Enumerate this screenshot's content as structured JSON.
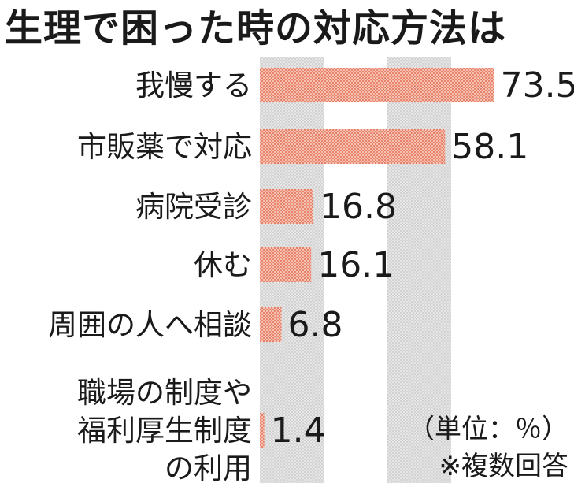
{
  "chart_data": {
    "type": "bar",
    "orientation": "horizontal",
    "title": "生理で困った時の対応方法は",
    "categories": [
      [
        "我慢する"
      ],
      [
        "市販薬で対応"
      ],
      [
        "病院受診"
      ],
      [
        "休む"
      ],
      [
        "周囲の人へ相談"
      ],
      [
        "職場の制度や",
        "福利厚生制度",
        "の利用"
      ]
    ],
    "values": [
      73.5,
      58.1,
      16.8,
      16.1,
      6.8,
      1.4
    ],
    "value_labels": [
      "73.5",
      "58.1",
      "16.8",
      "16.1",
      "6.8",
      "1.4"
    ],
    "xlim": [
      0,
      80
    ],
    "grid_bands": [
      [
        0,
        20
      ],
      [
        40,
        60
      ]
    ],
    "unit_note": "（単位：％）",
    "footnote": "※複数回答",
    "colors": {
      "bar": "#e8826a",
      "bar_dot": "#f3c2b3",
      "band": "#e6e6e6",
      "band_dot": "#d2d2d2",
      "text": "#1a1a1a"
    }
  }
}
